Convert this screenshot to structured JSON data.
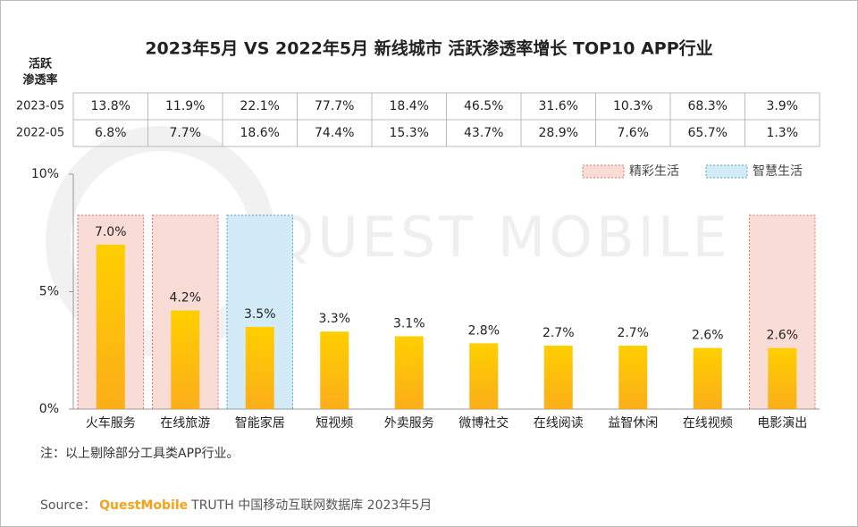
{
  "chart_data": {
    "type": "bar",
    "title": "2023年5月 VS 2022年5月 新线城市 活跃渗透率增长 TOP10 APP行业",
    "categories": [
      "火车服务",
      "在线旅游",
      "智能家居",
      "短视频",
      "外卖服务",
      "微博社交",
      "在线阅读",
      "益智休闲",
      "在线视频",
      "电影演出"
    ],
    "values": [
      7.0,
      4.2,
      3.5,
      3.3,
      3.1,
      2.8,
      2.7,
      2.7,
      2.6,
      2.6
    ],
    "value_labels": [
      "7.0%",
      "4.2%",
      "3.5%",
      "3.3%",
      "3.1%",
      "2.8%",
      "2.7%",
      "2.7%",
      "2.6%",
      "2.6%"
    ],
    "color": "#ffc20e",
    "ylim": [
      0,
      10
    ],
    "yticks": [
      {
        "value": 0,
        "label": "0%"
      },
      {
        "value": 5,
        "label": "5%"
      },
      {
        "value": 10,
        "label": "10%"
      }
    ],
    "groups": [
      {
        "name": "精彩生活",
        "color": "#fadcd7",
        "border": "#e0706a",
        "categories": [
          0,
          1,
          9
        ]
      },
      {
        "name": "智慧生活",
        "color": "#d2ebf6",
        "border": "#4fa3cf",
        "categories": [
          2
        ]
      }
    ],
    "watermark": "QUEST MOBILE"
  },
  "table": {
    "header": [
      "活跃",
      "渗透率"
    ],
    "rows": [
      {
        "label": "2023-05",
        "cells": [
          "13.8%",
          "11.9%",
          "22.1%",
          "77.7%",
          "18.4%",
          "46.5%",
          "31.6%",
          "10.3%",
          "68.3%",
          "3.9%"
        ]
      },
      {
        "label": "2022-05",
        "cells": [
          "6.8%",
          "7.7%",
          "18.6%",
          "74.4%",
          "15.3%",
          "43.7%",
          "28.9%",
          "7.6%",
          "65.7%",
          "1.3%"
        ]
      }
    ]
  },
  "note": "注：以上剔除部分工具类APP行业。",
  "source": {
    "label": "Source：",
    "brand": "QuestMobile",
    "text": "TRUTH 中国移动互联网数据库 2023年5月"
  }
}
